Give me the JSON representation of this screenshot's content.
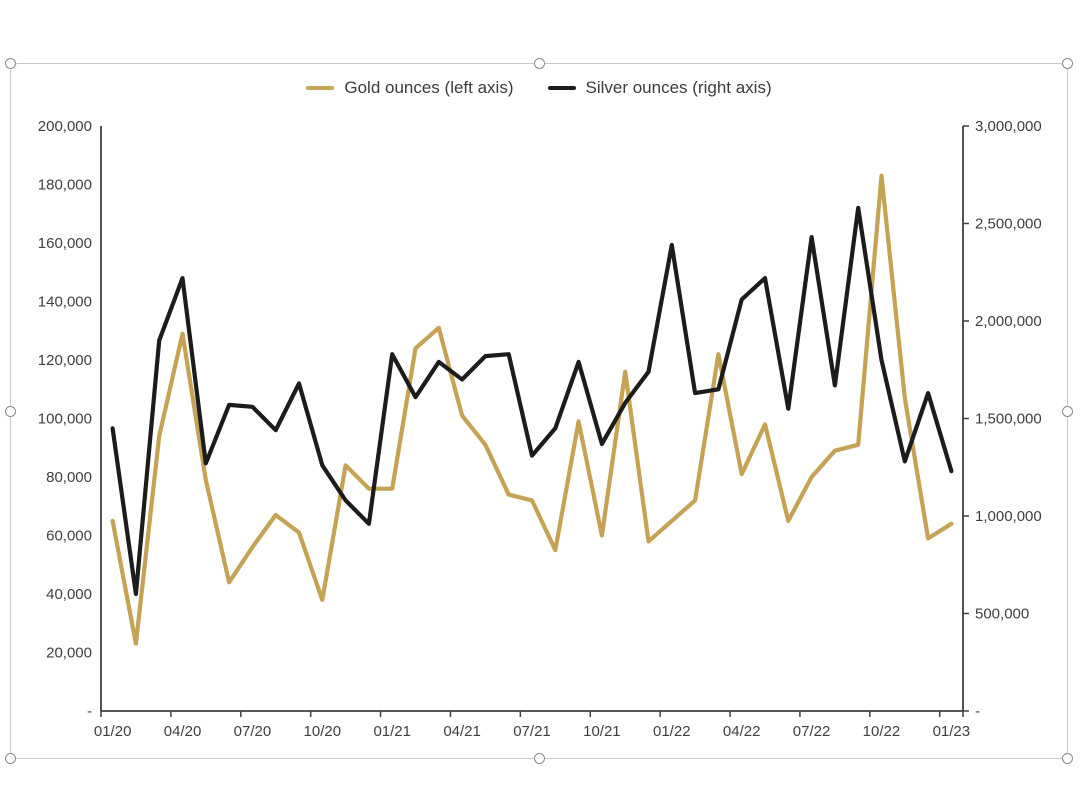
{
  "legend": {
    "items": [
      {
        "label": "Gold ounces (left axis)",
        "color": "#C6A254"
      },
      {
        "label": "Silver ounces (right axis)",
        "color": "#1C1C1C"
      }
    ]
  },
  "chart_data": {
    "type": "line",
    "title": "",
    "x": [
      "01/20",
      "02/20",
      "03/20",
      "04/20",
      "05/20",
      "06/20",
      "07/20",
      "08/20",
      "09/20",
      "10/20",
      "11/20",
      "12/20",
      "01/21",
      "02/21",
      "03/21",
      "04/21",
      "05/21",
      "06/21",
      "07/21",
      "08/21",
      "09/21",
      "10/21",
      "11/21",
      "12/21",
      "01/22",
      "02/22",
      "03/22",
      "04/22",
      "05/22",
      "06/22",
      "07/22",
      "08/22",
      "09/22",
      "10/22",
      "11/22",
      "12/22",
      "01/23"
    ],
    "x_tick_labels": [
      "01/20",
      "04/20",
      "07/20",
      "10/20",
      "01/21",
      "04/21",
      "07/21",
      "10/21",
      "01/22",
      "04/22",
      "07/22",
      "10/22",
      "01/23"
    ],
    "series": [
      {
        "name": "Gold ounces (left axis)",
        "axis": "left",
        "color": "#C6A254",
        "values": [
          65000,
          23000,
          94000,
          129000,
          79000,
          44000,
          56000,
          67000,
          61000,
          38000,
          84000,
          76000,
          76000,
          124000,
          131000,
          101000,
          91000,
          74000,
          72000,
          55000,
          99000,
          60000,
          116000,
          58000,
          65000,
          72000,
          122000,
          81000,
          98000,
          65000,
          80000,
          89000,
          91000,
          183000,
          107000,
          59000,
          64000
        ]
      },
      {
        "name": "Silver ounces (right axis)",
        "axis": "right",
        "color": "#1C1C1C",
        "values": [
          1450000,
          600000,
          1900000,
          2220000,
          1270000,
          1570000,
          1560000,
          1440000,
          1680000,
          1260000,
          1080000,
          960000,
          1830000,
          1610000,
          1790000,
          1700000,
          1820000,
          1830000,
          1310000,
          1450000,
          1790000,
          1370000,
          1580000,
          1740000,
          2390000,
          1630000,
          1650000,
          2110000,
          2220000,
          1550000,
          2430000,
          1670000,
          2580000,
          1800000,
          1280000,
          1630000,
          1230000
        ]
      }
    ],
    "left_axis": {
      "min": 0,
      "max": 200000,
      "step": 20000,
      "tick_labels_top_to_bottom": [
        "200,000",
        "180,000",
        "160,000",
        "140,000",
        "120,000",
        "100,000",
        "80,000",
        "60,000",
        "40,000",
        "20,000",
        "-"
      ]
    },
    "right_axis": {
      "min": 0,
      "max": 3000000,
      "step": 500000,
      "tick_labels_top_to_bottom": [
        "3,000,000",
        "2,500,000",
        "2,000,000",
        "1,500,000",
        "1,000,000",
        "500,000",
        "-"
      ]
    },
    "grid": false,
    "legend_position": "top",
    "axis_color": "#3f3f3f"
  }
}
